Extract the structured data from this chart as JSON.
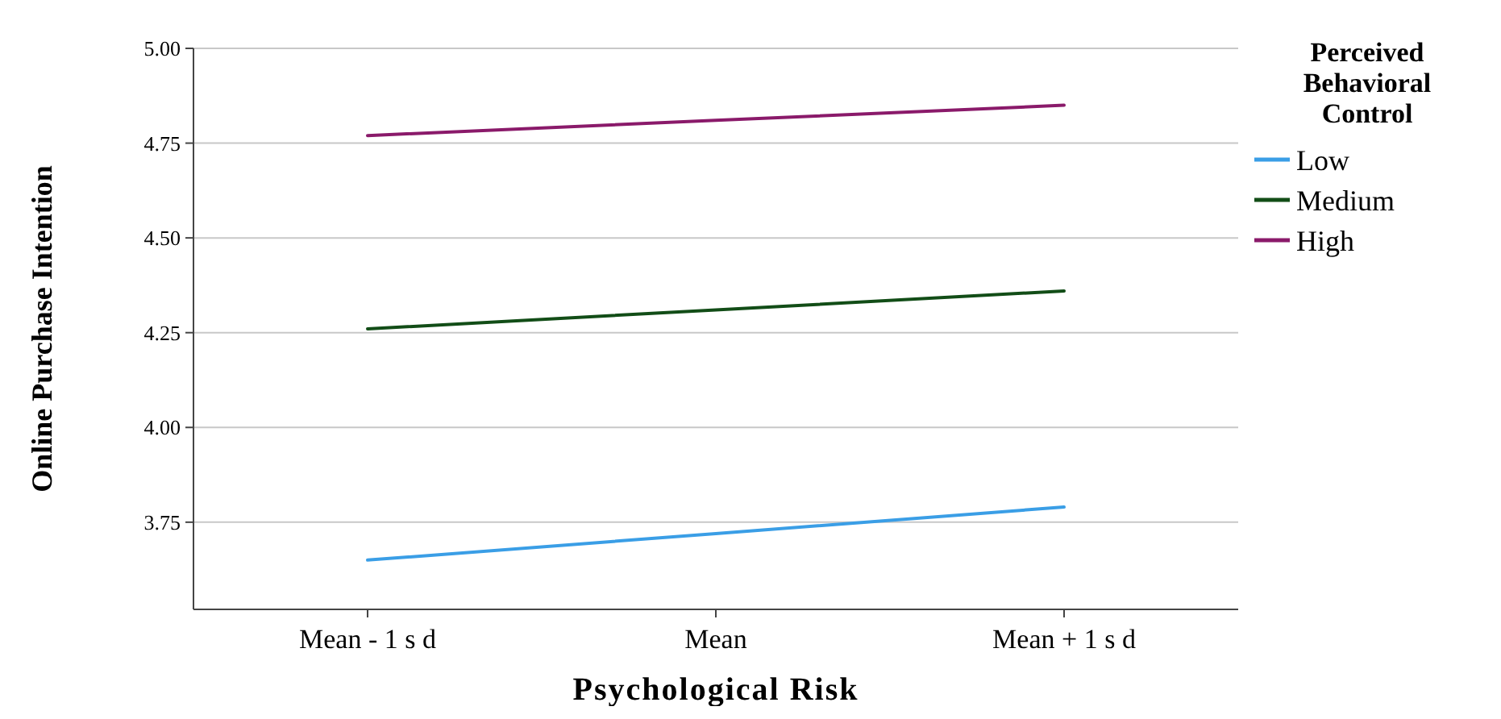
{
  "chart_data": {
    "type": "line",
    "xlabel": "Psychological Risk",
    "ylabel": "Online Purchase Intention",
    "legend_title": "Perceived Behavioral Control",
    "categories": [
      "Mean - 1 s d",
      "Mean",
      "Mean + 1 s d"
    ],
    "series": [
      {
        "name": "Low",
        "color": "#3a9ee6",
        "values": [
          3.65,
          3.72,
          3.79
        ]
      },
      {
        "name": "Medium",
        "color": "#124d17",
        "values": [
          4.26,
          4.31,
          4.36
        ]
      },
      {
        "name": "High",
        "color": "#8a1a6a",
        "values": [
          4.77,
          4.81,
          4.85
        ]
      }
    ],
    "ylim": [
      3.52,
      5.0
    ],
    "yticks": [
      {
        "value": 3.75,
        "label": "3.75"
      },
      {
        "value": 4,
        "label": "4.00"
      },
      {
        "value": 4.25,
        "label": "4.25"
      },
      {
        "value": 4.5,
        "label": "4.50"
      },
      {
        "value": 4.75,
        "label": "4.75"
      },
      {
        "value": 5,
        "label": "5.00"
      }
    ],
    "grid": "y",
    "legend": "right",
    "marker": "none",
    "line_style": "solid"
  }
}
